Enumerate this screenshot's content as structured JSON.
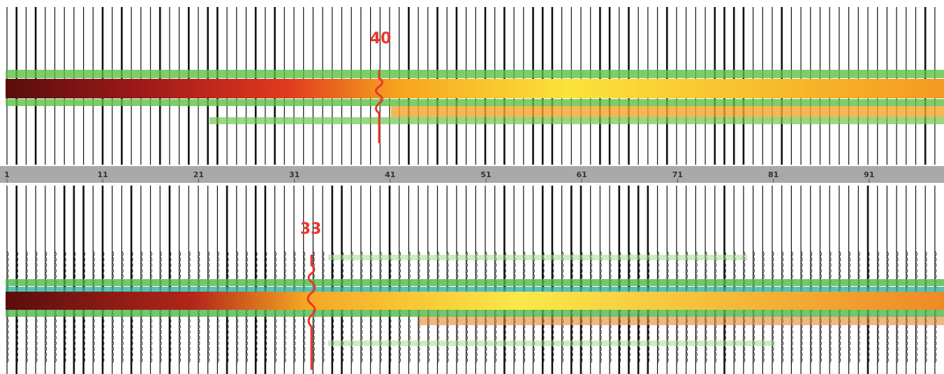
{
  "top_panel": {
    "marker_label": "40"
  },
  "ruler": {
    "labels": [
      "1",
      "11",
      "21",
      "31",
      "41",
      "51",
      "61",
      "71",
      "81",
      "91"
    ]
  },
  "bottom_panel": {
    "marker_label": "33"
  }
}
